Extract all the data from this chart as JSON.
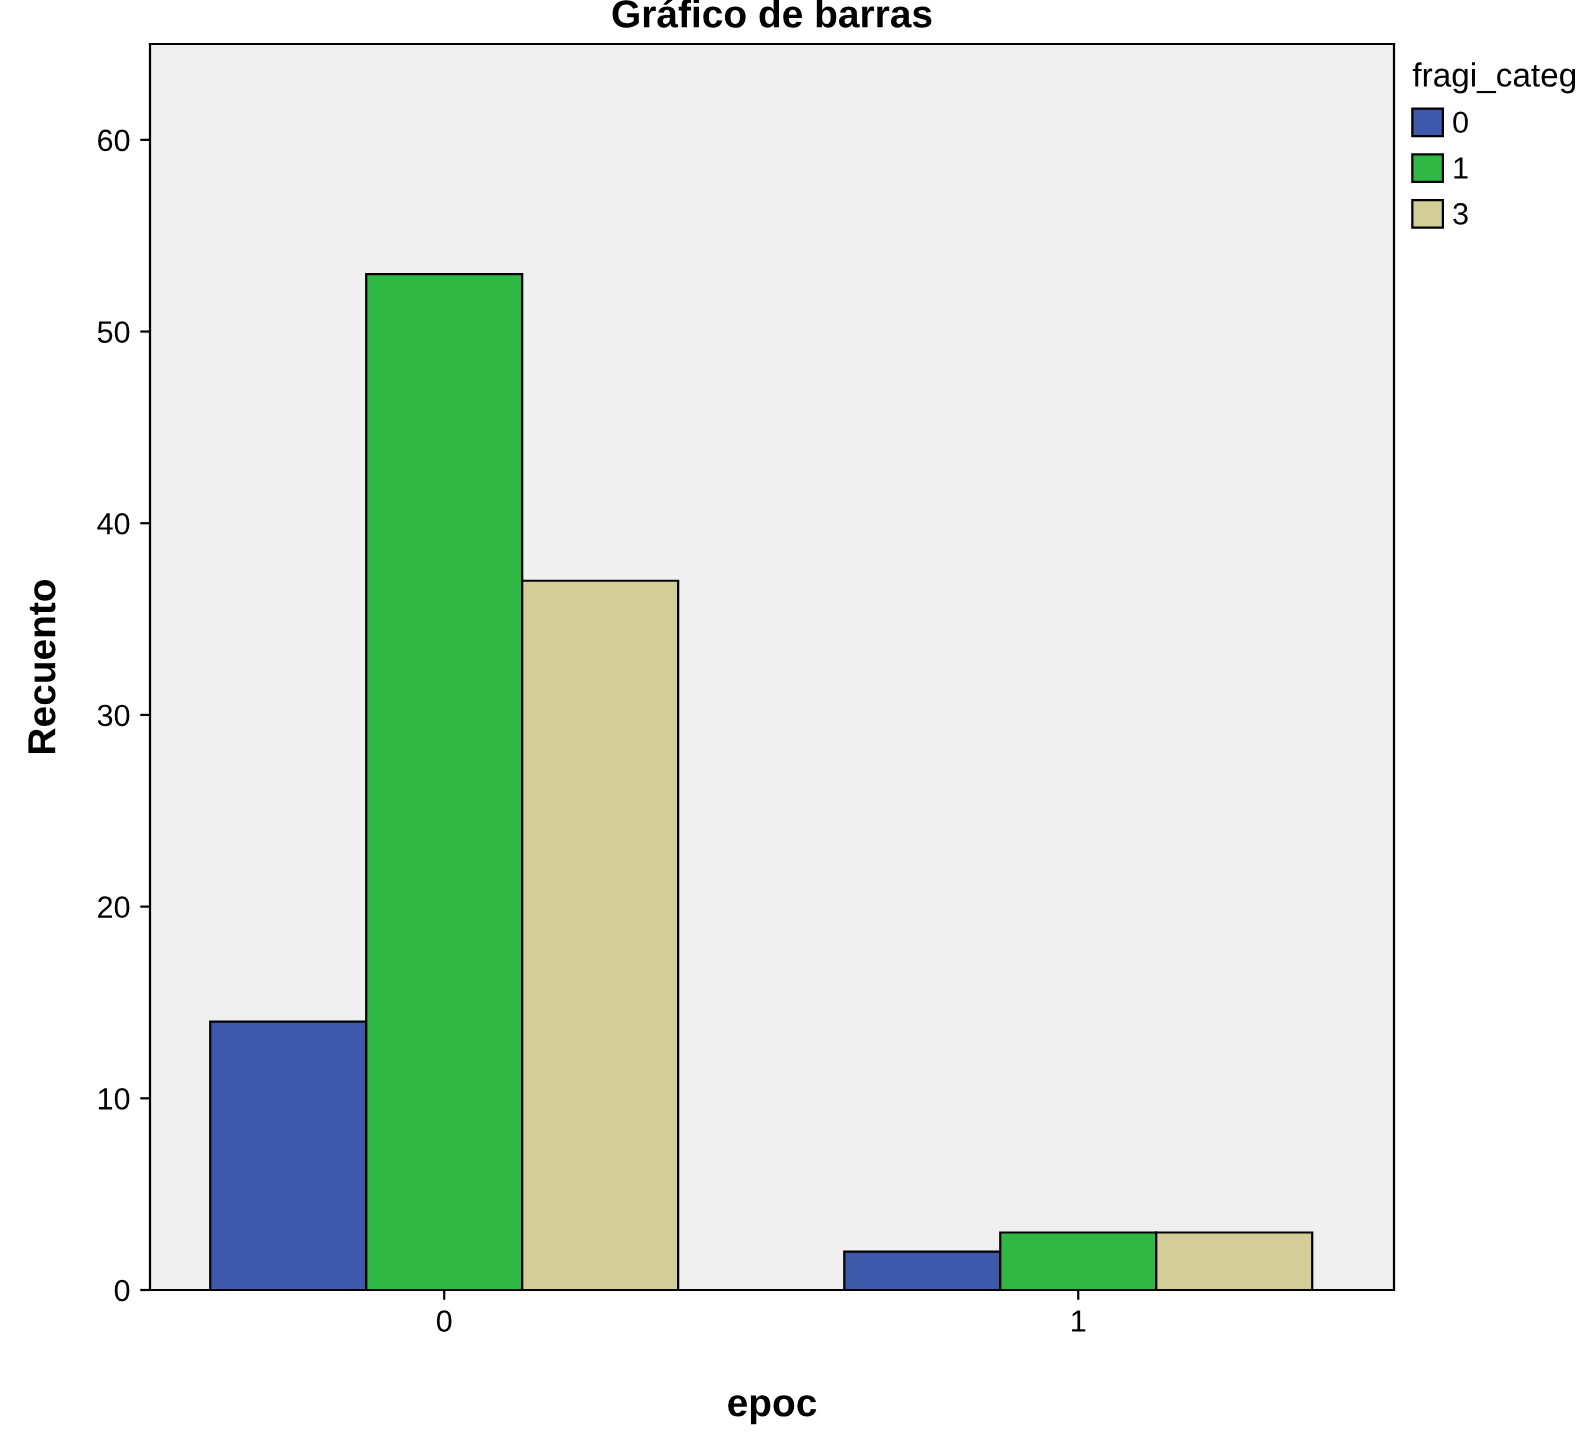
{
  "chart_data": {
    "type": "bar",
    "title": "Gráfico de barras",
    "xlabel": "epoc",
    "ylabel": "Recuento",
    "legend_title": "fragi_categ",
    "categories": [
      "0",
      "1"
    ],
    "series": [
      {
        "name": "0",
        "color": "#3e58ac",
        "values": [
          14,
          2
        ]
      },
      {
        "name": "1",
        "color": "#2fb844",
        "values": [
          53,
          3
        ]
      },
      {
        "name": "3",
        "color": "#d3ce97",
        "values": [
          37,
          3
        ]
      }
    ],
    "ylim": [
      0,
      65
    ],
    "yticks": [
      0,
      10,
      20,
      30,
      40,
      50,
      60
    ],
    "grid": false,
    "legend": "top right"
  }
}
